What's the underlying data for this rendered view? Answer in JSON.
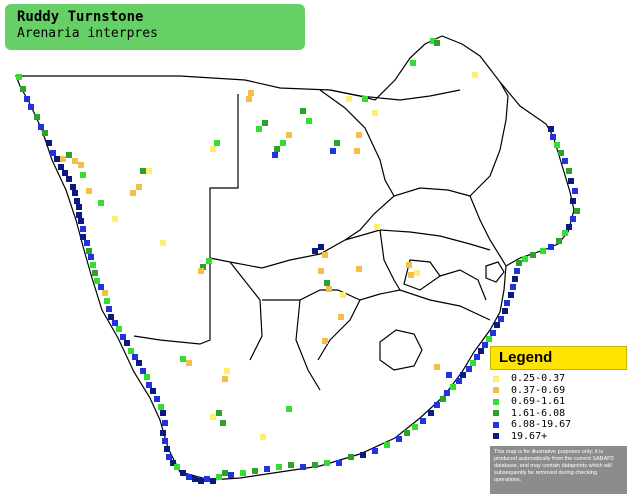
{
  "title": "Ruddy Turnstone",
  "subtitle": "Arenaria interpres",
  "legend": {
    "title": "Legend",
    "items": [
      {
        "label": "0.25-0.37",
        "color": "#ffef6a"
      },
      {
        "label": "0.37-0.69",
        "color": "#f4c04a"
      },
      {
        "label": "0.69-1.61",
        "color": "#33dd33"
      },
      {
        "label": "1.61-6.08",
        "color": "#2ea02e"
      },
      {
        "label": "6.08-19.67",
        "color": "#2233dd"
      },
      {
        "label": "19.67+",
        "color": "#0a1a80"
      }
    ],
    "note": "This map is for illustrative purposes only; it is produced automatically from the current SABAP2 database, and may contain datapoints which will subsequently be removed during checking operations."
  },
  "map": {
    "border_color": "#000000",
    "land_color": "#ffffff"
  }
}
